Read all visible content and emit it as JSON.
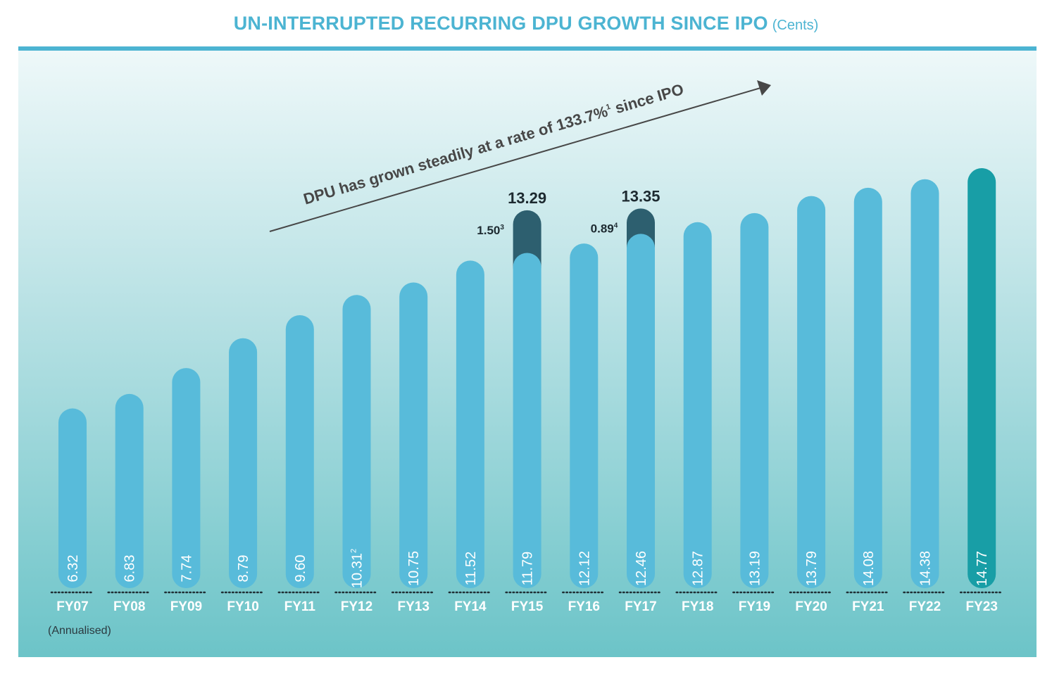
{
  "title": {
    "main": "UN-INTERRUPTED RECURRING DPU GROWTH SINCE IPO",
    "unit": "(Cents)"
  },
  "annotation": {
    "text": "DPU has grown steadily at a rate of 133.7%",
    "superscript": "1",
    "text_after": " since IPO"
  },
  "footnote": "(Annualised)",
  "colors": {
    "bar": "#58bbda",
    "highlight_bar": "#189ea6",
    "stacked_segment": "#2d5f6f",
    "title": "#4cb4d2",
    "label_text": "#ffffff",
    "axis_text": "#ffffff"
  },
  "chart_data": {
    "type": "bar",
    "title": "UN-INTERRUPTED RECURRING DPU GROWTH SINCE IPO",
    "unit": "Cents",
    "categories": [
      "FY07",
      "FY08",
      "FY09",
      "FY10",
      "FY11",
      "FY12",
      "FY13",
      "FY14",
      "FY15",
      "FY16",
      "FY17",
      "FY18",
      "FY19",
      "FY20",
      "FY21",
      "FY22",
      "FY23"
    ],
    "values": [
      6.32,
      6.83,
      7.74,
      8.79,
      9.6,
      10.31,
      10.75,
      11.52,
      11.79,
      12.12,
      12.46,
      12.87,
      13.19,
      13.79,
      14.08,
      14.38,
      14.77
    ],
    "value_labels": [
      "6.32",
      "6.83",
      "7.74",
      "8.79",
      "9.60",
      "10.31",
      "10.75",
      "11.52",
      "11.79",
      "12.12",
      "12.46",
      "12.87",
      "13.19",
      "13.79",
      "14.08",
      "14.38",
      "14.77"
    ],
    "value_superscripts": [
      "",
      "",
      "",
      "",
      "",
      "2",
      "",
      "",
      "",
      "",
      "",
      "",
      "",
      "",
      "",
      "",
      ""
    ],
    "stacked_extra": [
      {
        "category": "FY15",
        "value": 1.5,
        "label": "1.50",
        "superscript": "3",
        "total": 13.29,
        "total_label": "13.29"
      },
      {
        "category": "FY17",
        "value": 0.89,
        "label": "0.89",
        "superscript": "4",
        "total": 13.35,
        "total_label": "13.35"
      }
    ],
    "highlight_category": "FY23",
    "grid": false,
    "legend": "none"
  }
}
